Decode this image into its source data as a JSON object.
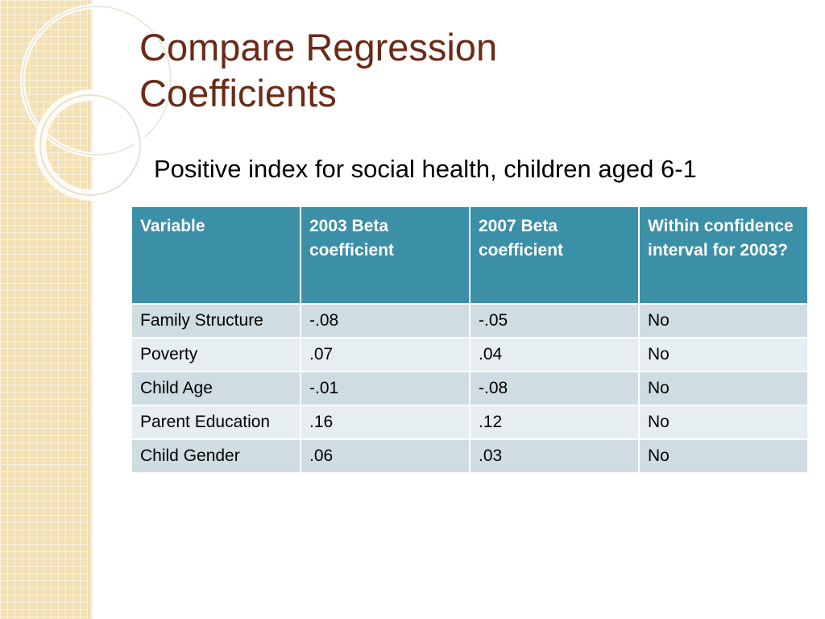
{
  "slide": {
    "title": "Compare Regression\nCoefficients",
    "subtitle": "Positive index for social health, children aged 6-1"
  },
  "table": {
    "headers": [
      "Variable",
      "2003 Beta coefficient",
      "2007 Beta coefficient",
      "Within confidence interval for 2003?"
    ],
    "rows": [
      [
        "Family Structure",
        "-.08",
        "-.05",
        "No"
      ],
      [
        "Poverty",
        ".07",
        ".04",
        "No"
      ],
      [
        "Child Age",
        "-.01",
        "-.08",
        "No"
      ],
      [
        "Parent Education",
        ".16",
        ".12",
        "No"
      ],
      [
        "Child Gender",
        ".06",
        ".03",
        "No"
      ]
    ]
  },
  "colors": {
    "title": "#6b2a17",
    "header_bg": "#3b8fa6",
    "row_odd_bg": "#cfdde2",
    "row_even_bg": "#e7eef1",
    "side_strip": "#f3e1b5"
  }
}
